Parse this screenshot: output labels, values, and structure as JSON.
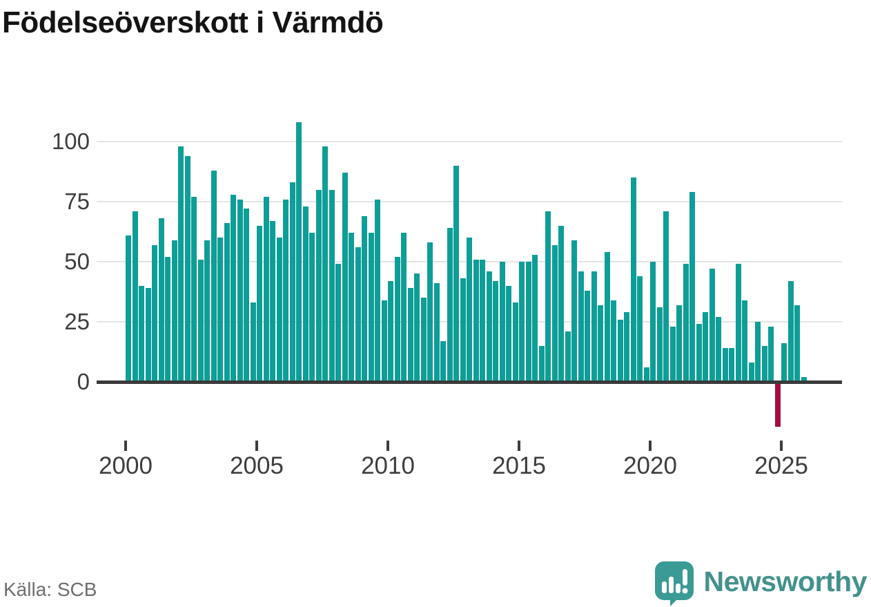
{
  "title": "Födelseöverskott i Värmdö",
  "source": "Källa: SCB",
  "branding": {
    "name": "Newsworthy",
    "icon": "newsworthy-speech-bubble-chart-icon"
  },
  "colors": {
    "bar": "#0d9e97",
    "negative": "#a60d3f",
    "baseline": "#3a3a3a",
    "gridline": "#e4e4e4",
    "brand_teal": "#43918d",
    "icon_teal": "#3a9a94"
  },
  "chart_data": {
    "type": "bar",
    "title": "Födelseöverskott i Värmdö",
    "xlabel": "",
    "ylabel": "",
    "x_unit": "quarter",
    "start_year": 2000,
    "end_year": 2025,
    "x_tick_labels": [
      "2000",
      "2005",
      "2010",
      "2015",
      "2020",
      "2025"
    ],
    "y_tick_values": [
      0,
      25,
      50,
      75,
      100
    ],
    "ylim": [
      -25,
      110
    ],
    "grid": "horizontal",
    "legend": "none",
    "negative_bar_color": "#a60d3f",
    "values": [
      61,
      71,
      40,
      39,
      57,
      68,
      52,
      59,
      98,
      94,
      77,
      51,
      59,
      88,
      60,
      66,
      78,
      76,
      72,
      33,
      65,
      77,
      67,
      60,
      76,
      83,
      108,
      73,
      62,
      80,
      98,
      80,
      49,
      87,
      62,
      56,
      69,
      62,
      76,
      34,
      42,
      52,
      62,
      39,
      45,
      35,
      58,
      41,
      17,
      64,
      90,
      43,
      60,
      51,
      51,
      46,
      42,
      50,
      40,
      33,
      50,
      50,
      53,
      15,
      71,
      57,
      65,
      21,
      59,
      46,
      38,
      46,
      32,
      54,
      34,
      26,
      29,
      85,
      44,
      6,
      50,
      31,
      71,
      23,
      32,
      49,
      79,
      24,
      29,
      47,
      27,
      14,
      14,
      49,
      34,
      8,
      25,
      15,
      23,
      -18,
      16,
      42,
      32,
      2
    ]
  }
}
